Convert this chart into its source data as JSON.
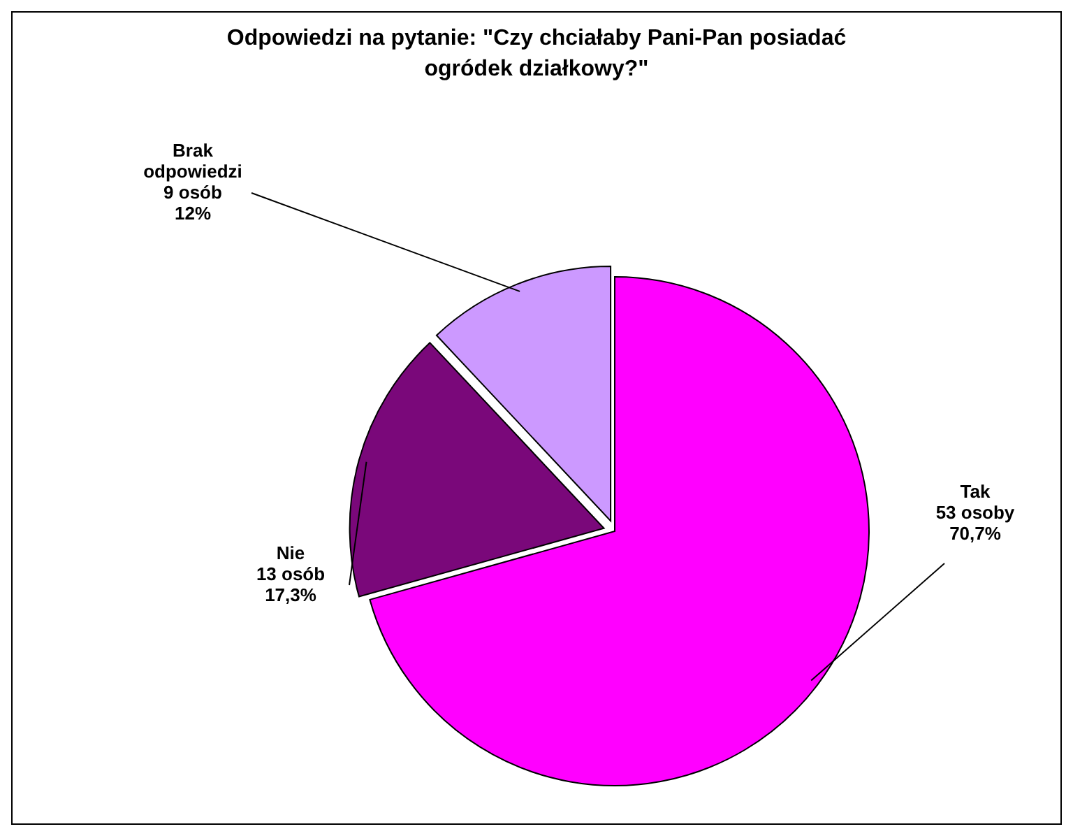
{
  "chart_data": {
    "type": "pie",
    "title": "Odpowiedzi na pytanie: \"Czy chciałaby Pani-Pan posiadać ogródek działkowy?\"",
    "categories": [
      "Tak",
      "Nie",
      "Brak odpowiedzi"
    ],
    "values": [
      53,
      13,
      9
    ],
    "value_labels": [
      "53 osoby\n70,7%",
      "13 osób\n17,3%",
      "9 osób\n12%"
    ],
    "colors": [
      "#ff00ff",
      "#7a087a",
      "#cc99ff"
    ]
  }
}
